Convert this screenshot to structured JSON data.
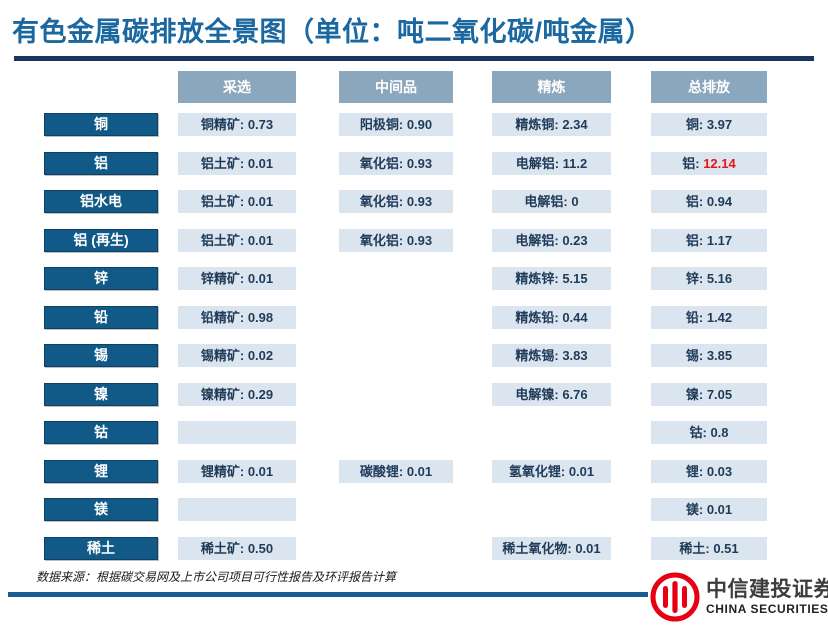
{
  "title": "有色金属碳排放全景图（单位：吨二氧化碳/吨金属）",
  "source_note": "数据来源：根据碳交易网及上市公司项目可行性报告及环评报告计算",
  "logo": {
    "cn": "中信建投证券",
    "en": "CHINA SECURITIES"
  },
  "colors": {
    "title_blue": "#1a689f",
    "title_rule_navy": "#17375e",
    "footer_rule_blue": "#1a5c94",
    "stage_header_bg": "#8aa7be",
    "row_label_bg": "#115a87",
    "cell_bg": "#dbe5f0",
    "cell_text_navy": "#1f3b57",
    "highlight_red": "#e81515",
    "logo_red": "#e60012"
  },
  "chart_data": {
    "type": "table",
    "title": "有色金属碳排放全景图",
    "unit": "吨二氧化碳/吨金属",
    "columns": [
      "采选",
      "中间品",
      "精炼",
      "总排放"
    ],
    "rows": [
      {
        "label": "铜",
        "cells": [
          {
            "name": "铜精矿",
            "value": "0.73"
          },
          {
            "name": "阳极铜",
            "value": "0.90"
          },
          {
            "name": "精炼铜",
            "value": "2.34"
          },
          {
            "name": "铜",
            "value": "3.97"
          }
        ]
      },
      {
        "label": "铝",
        "cells": [
          {
            "name": "铝土矿",
            "value": "0.01"
          },
          {
            "name": "氧化铝",
            "value": "0.93"
          },
          {
            "name": "电解铝",
            "value": "11.2"
          },
          {
            "name": "铝",
            "value": "12.14",
            "highlight": true
          }
        ]
      },
      {
        "label": "铝水电",
        "cells": [
          {
            "name": "铝土矿",
            "value": "0.01"
          },
          {
            "name": "氧化铝",
            "value": "0.93"
          },
          {
            "name": "电解铝",
            "value": "0"
          },
          {
            "name": "铝",
            "value": "0.94"
          }
        ]
      },
      {
        "label": "铝 (再生)",
        "cells": [
          {
            "name": "铝土矿",
            "value": "0.01"
          },
          {
            "name": "氧化铝",
            "value": "0.93"
          },
          {
            "name": "电解铝",
            "value": "0.23"
          },
          {
            "name": "铝",
            "value": "1.17"
          }
        ]
      },
      {
        "label": "锌",
        "cells": [
          {
            "name": "锌精矿",
            "value": "0.01"
          },
          null,
          {
            "name": "精炼锌",
            "value": "5.15"
          },
          {
            "name": "锌",
            "value": "5.16"
          }
        ]
      },
      {
        "label": "铅",
        "cells": [
          {
            "name": "铅精矿",
            "value": "0.98"
          },
          null,
          {
            "name": "精炼铅",
            "value": "0.44"
          },
          {
            "name": "铅",
            "value": "1.42"
          }
        ]
      },
      {
        "label": "锡",
        "cells": [
          {
            "name": "锡精矿",
            "value": "0.02"
          },
          null,
          {
            "name": "精炼锡",
            "value": "3.83"
          },
          {
            "name": "锡",
            "value": "3.85"
          }
        ]
      },
      {
        "label": "镍",
        "cells": [
          {
            "name": "镍精矿",
            "value": "0.29"
          },
          null,
          {
            "name": "电解镍",
            "value": "6.76"
          },
          {
            "name": "镍",
            "value": "7.05"
          }
        ]
      },
      {
        "label": "钴",
        "cells": [
          {
            "name": "",
            "value": ""
          },
          null,
          null,
          {
            "name": "钴",
            "value": "0.8"
          }
        ]
      },
      {
        "label": "锂",
        "cells": [
          {
            "name": "锂精矿",
            "value": "0.01"
          },
          {
            "name": "碳酸锂",
            "value": "0.01"
          },
          {
            "name": "氢氧化锂",
            "value": "0.01"
          },
          {
            "name": "锂",
            "value": "0.03"
          }
        ]
      },
      {
        "label": "镁",
        "cells": [
          {
            "name": "",
            "value": ""
          },
          null,
          null,
          {
            "name": "镁",
            "value": "0.01"
          }
        ]
      },
      {
        "label": "稀土",
        "cells": [
          {
            "name": "稀土矿",
            "value": "0.50"
          },
          null,
          {
            "name": "稀土氧化物",
            "value": "0.01"
          },
          {
            "name": "稀土",
            "value": "0.51"
          }
        ]
      }
    ]
  }
}
